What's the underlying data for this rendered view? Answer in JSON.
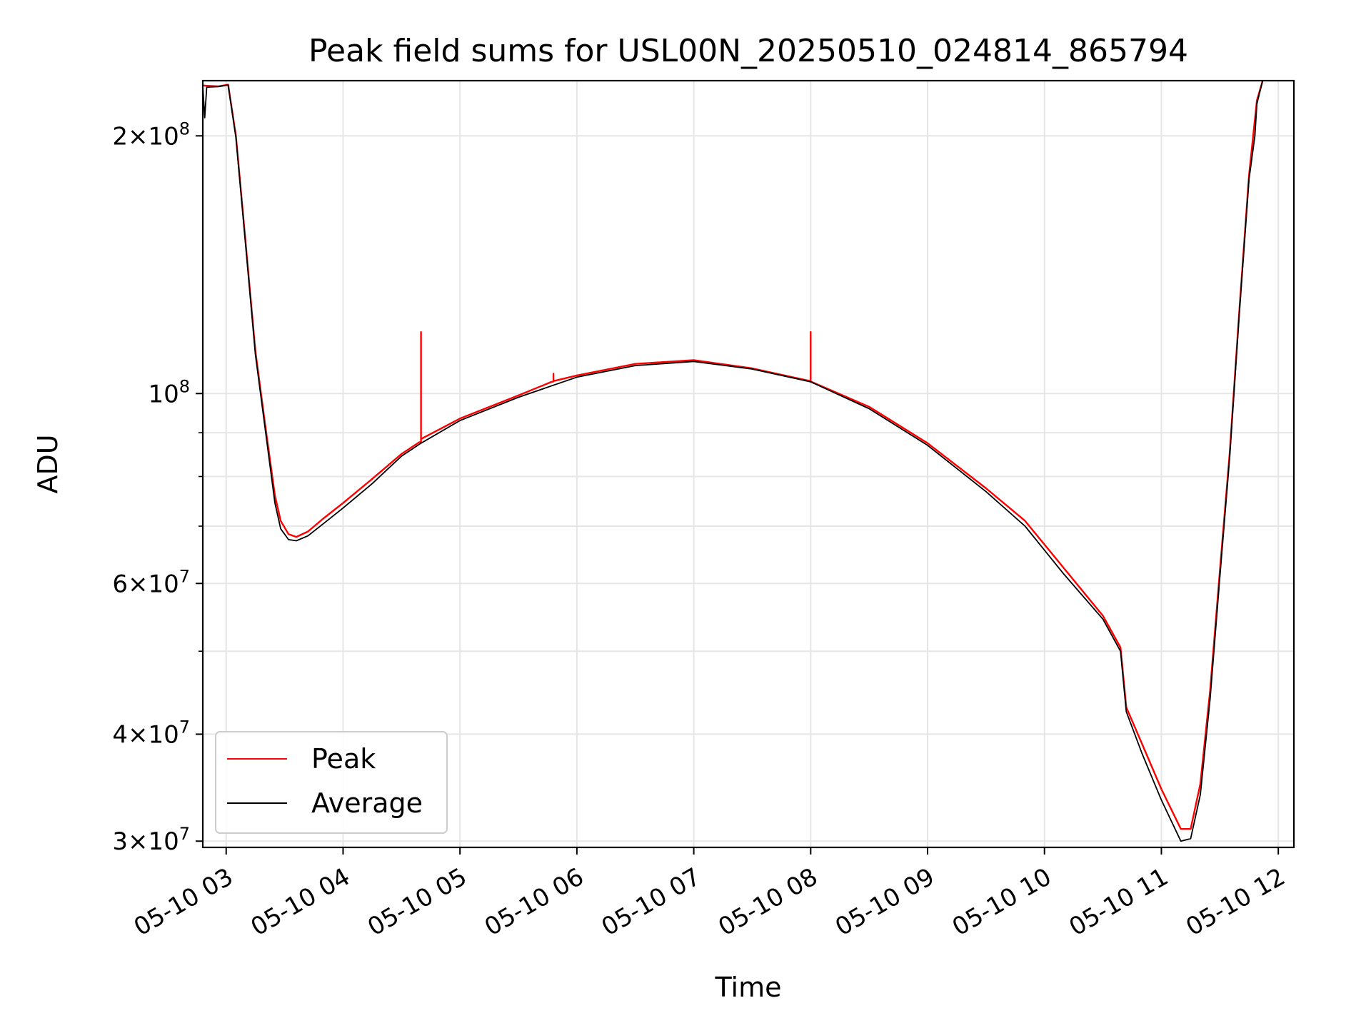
{
  "chart_data": {
    "type": "line",
    "title": "Peak field sums for USL00N_20250510_024814_865794",
    "xlabel": "Time",
    "ylabel": "ADU",
    "yscale": "log",
    "xlim": [
      "2025-05-10 02:48",
      "2025-05-10 12:08"
    ],
    "ylim": [
      29500000,
      232000000
    ],
    "grid": true,
    "legend_loc": "lower left",
    "x_ticks": [
      "05-10 03",
      "05-10 04",
      "05-10 05",
      "05-10 06",
      "05-10 07",
      "05-10 08",
      "05-10 09",
      "05-10 10",
      "05-10 11",
      "05-10 12"
    ],
    "y_ticks": [
      {
        "value": 200000000,
        "mant": "2",
        "exp": "8"
      },
      {
        "value": 100000000,
        "mant": "",
        "exp": "8"
      },
      {
        "value": 60000000,
        "mant": "6",
        "exp": "7"
      },
      {
        "value": 40000000,
        "mant": "4",
        "exp": "7"
      },
      {
        "value": 30000000,
        "mant": "3",
        "exp": "7"
      }
    ],
    "y_minor": [
      90000000,
      80000000,
      70000000,
      50000000
    ],
    "series": [
      {
        "name": "Peak",
        "color": "#ff0000",
        "points": [
          [
            "2025-05-10 02:48",
            229000000
          ],
          [
            "2025-05-10 02:56",
            228500000
          ],
          [
            "2025-05-10 03:01",
            229500000
          ],
          [
            "2025-05-10 03:05",
            200000000
          ],
          [
            "2025-05-10 03:10",
            150000000
          ],
          [
            "2025-05-10 03:15",
            112000000
          ],
          [
            "2025-05-10 03:20",
            92000000
          ],
          [
            "2025-05-10 03:25",
            76000000
          ],
          [
            "2025-05-10 03:28",
            71000000
          ],
          [
            "2025-05-10 03:32",
            68500000
          ],
          [
            "2025-05-10 03:36",
            68000000
          ],
          [
            "2025-05-10 03:42",
            69000000
          ],
          [
            "2025-05-10 03:50",
            71500000
          ],
          [
            "2025-05-10 04:00",
            74500000
          ],
          [
            "2025-05-10 04:15",
            79500000
          ],
          [
            "2025-05-10 04:30",
            85000000
          ],
          [
            "2025-05-10 04:39",
            87700000
          ],
          [
            "2025-05-10 04:40",
            87800000
          ],
          [
            "2025-05-10 04:40",
            118000000
          ],
          [
            "2025-05-10 04:40",
            88500000
          ],
          [
            "2025-05-10 05:00",
            93500000
          ],
          [
            "2025-05-10 05:30",
            99500000
          ],
          [
            "2025-05-10 05:47",
            103200000
          ],
          [
            "2025-05-10 05:48",
            103300000
          ],
          [
            "2025-05-10 05:48",
            105500000
          ],
          [
            "2025-05-10 05:48",
            103400000
          ],
          [
            "2025-05-10 06:00",
            105000000
          ],
          [
            "2025-05-10 06:30",
            108300000
          ],
          [
            "2025-05-10 07:00",
            109400000
          ],
          [
            "2025-05-10 07:30",
            107000000
          ],
          [
            "2025-05-10 07:59",
            103500000
          ],
          [
            "2025-05-10 08:00",
            103400000
          ],
          [
            "2025-05-10 08:00",
            118000000
          ],
          [
            "2025-05-10 08:00",
            103300000
          ],
          [
            "2025-05-10 08:30",
            96500000
          ],
          [
            "2025-05-10 09:00",
            87500000
          ],
          [
            "2025-05-10 09:30",
            77500000
          ],
          [
            "2025-05-10 09:50",
            71000000
          ],
          [
            "2025-05-10 10:10",
            62500000
          ],
          [
            "2025-05-10 10:30",
            55000000
          ],
          [
            "2025-05-10 10:39",
            50500000
          ],
          [
            "2025-05-10 10:42",
            43000000
          ],
          [
            "2025-05-10 10:50",
            39000000
          ],
          [
            "2025-05-10 11:00",
            34500000
          ],
          [
            "2025-05-10 11:10",
            31000000
          ],
          [
            "2025-05-10 11:15",
            31000000
          ],
          [
            "2025-05-10 11:20",
            35000000
          ],
          [
            "2025-05-10 11:25",
            45000000
          ],
          [
            "2025-05-10 11:30",
            62000000
          ],
          [
            "2025-05-10 11:35",
            85000000
          ],
          [
            "2025-05-10 11:40",
            125000000
          ],
          [
            "2025-05-10 11:45",
            180000000
          ],
          [
            "2025-05-10 11:49",
            220000000
          ],
          [
            "2025-05-10 11:52",
            232000000
          ]
        ]
      },
      {
        "name": "Average",
        "color": "#000000",
        "points": [
          [
            "2025-05-10 02:48",
            228500000
          ],
          [
            "2025-05-10 02:49",
            210000000
          ],
          [
            "2025-05-10 02:50",
            228000000
          ],
          [
            "2025-05-10 02:56",
            228300000
          ],
          [
            "2025-05-10 03:01",
            229300000
          ],
          [
            "2025-05-10 03:05",
            199000000
          ],
          [
            "2025-05-10 03:10",
            149000000
          ],
          [
            "2025-05-10 03:15",
            111000000
          ],
          [
            "2025-05-10 03:20",
            91000000
          ],
          [
            "2025-05-10 03:25",
            74500000
          ],
          [
            "2025-05-10 03:28",
            69500000
          ],
          [
            "2025-05-10 03:32",
            67500000
          ],
          [
            "2025-05-10 03:36",
            67300000
          ],
          [
            "2025-05-10 03:42",
            68200000
          ],
          [
            "2025-05-10 03:50",
            70500000
          ],
          [
            "2025-05-10 04:00",
            73500000
          ],
          [
            "2025-05-10 04:15",
            78500000
          ],
          [
            "2025-05-10 04:30",
            84500000
          ],
          [
            "2025-05-10 04:40",
            87500000
          ],
          [
            "2025-05-10 05:00",
            93000000
          ],
          [
            "2025-05-10 05:30",
            99000000
          ],
          [
            "2025-05-10 06:00",
            104500000
          ],
          [
            "2025-05-10 06:30",
            107800000
          ],
          [
            "2025-05-10 07:00",
            109000000
          ],
          [
            "2025-05-10 07:30",
            106800000
          ],
          [
            "2025-05-10 08:00",
            103200000
          ],
          [
            "2025-05-10 08:30",
            96000000
          ],
          [
            "2025-05-10 09:00",
            87000000
          ],
          [
            "2025-05-10 09:30",
            76800000
          ],
          [
            "2025-05-10 09:50",
            70000000
          ],
          [
            "2025-05-10 10:10",
            61500000
          ],
          [
            "2025-05-10 10:30",
            54500000
          ],
          [
            "2025-05-10 10:39",
            50000000
          ],
          [
            "2025-05-10 10:42",
            42500000
          ],
          [
            "2025-05-10 10:50",
            38000000
          ],
          [
            "2025-05-10 11:00",
            33500000
          ],
          [
            "2025-05-10 11:10",
            30000000
          ],
          [
            "2025-05-10 11:15",
            30200000
          ],
          [
            "2025-05-10 11:20",
            34000000
          ],
          [
            "2025-05-10 11:25",
            44000000
          ],
          [
            "2025-05-10 11:30",
            61000000
          ],
          [
            "2025-05-10 11:35",
            84000000
          ],
          [
            "2025-05-10 11:40",
            124000000
          ],
          [
            "2025-05-10 11:45",
            178000000
          ],
          [
            "2025-05-10 11:48",
            200000000
          ],
          [
            "2025-05-10 11:49",
            218000000
          ],
          [
            "2025-05-10 11:52",
            232000000
          ]
        ]
      }
    ]
  }
}
